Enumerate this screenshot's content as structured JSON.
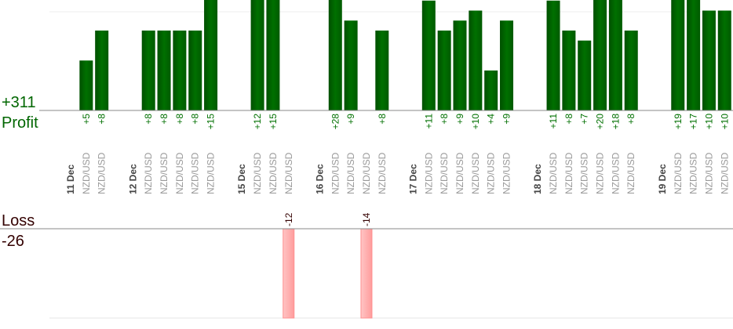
{
  "chart_data": {
    "type": "bar",
    "profit_total_label": "+311",
    "profit_label": "Profit",
    "loss_label": "Loss",
    "loss_total_label": "-26",
    "profit_axis_max": 11.06,
    "profit_gridline": 10,
    "loss_axis_max": 12,
    "colors": {
      "profit": "#006400",
      "profit_text": "#007000",
      "loss": "#ffaaaa",
      "loss_text": "#330000",
      "pair_text": "#999999",
      "date_text": "#444444"
    },
    "days": [
      {
        "date": "11 Dec",
        "trades": [
          {
            "pair": "NZD/USD",
            "value": 5,
            "label": "+5"
          },
          {
            "pair": "NZD/USD",
            "value": 8,
            "label": "+8"
          }
        ]
      },
      {
        "date": "12 Dec",
        "trades": [
          {
            "pair": "NZD/USD",
            "value": 8,
            "label": "+8"
          },
          {
            "pair": "NZD/USD",
            "value": 8,
            "label": "+8"
          },
          {
            "pair": "NZD/USD",
            "value": 8,
            "label": "+8"
          },
          {
            "pair": "NZD/USD",
            "value": 8,
            "label": "+8"
          },
          {
            "pair": "NZD/USD",
            "value": 15,
            "label": "+15"
          }
        ]
      },
      {
        "date": "15 Dec",
        "trades": [
          {
            "pair": "NZD/USD",
            "value": 12,
            "label": "+12"
          },
          {
            "pair": "NZD/USD",
            "value": 15,
            "label": "+15"
          },
          {
            "pair": "NZD/USD",
            "value": -12,
            "label": "-12"
          }
        ]
      },
      {
        "date": "16 Dec",
        "trades": [
          {
            "pair": "NZD/USD",
            "value": 28,
            "label": "+28"
          },
          {
            "pair": "NZD/USD",
            "value": 9,
            "label": "+9"
          },
          {
            "pair": "NZD/USD",
            "value": -14,
            "label": "-14"
          },
          {
            "pair": "NZD/USD",
            "value": 8,
            "label": "+8"
          }
        ]
      },
      {
        "date": "17 Dec",
        "trades": [
          {
            "pair": "NZD/USD",
            "value": 11,
            "label": "+11"
          },
          {
            "pair": "NZD/USD",
            "value": 8,
            "label": "+8"
          },
          {
            "pair": "NZD/USD",
            "value": 9,
            "label": "+9"
          },
          {
            "pair": "NZD/USD",
            "value": 10,
            "label": "+10"
          },
          {
            "pair": "NZD/USD",
            "value": 4,
            "label": "+4"
          },
          {
            "pair": "NZD/USD",
            "value": 9,
            "label": "+9"
          }
        ]
      },
      {
        "date": "18 Dec",
        "trades": [
          {
            "pair": "NZD/USD",
            "value": 11,
            "label": "+11"
          },
          {
            "pair": "NZD/USD",
            "value": 8,
            "label": "+8"
          },
          {
            "pair": "NZD/USD",
            "value": 7,
            "label": "+7"
          },
          {
            "pair": "NZD/USD",
            "value": 20,
            "label": "+20"
          },
          {
            "pair": "NZD/USD",
            "value": 18,
            "label": "+18"
          },
          {
            "pair": "NZD/USD",
            "value": 8,
            "label": "+8"
          }
        ]
      },
      {
        "date": "19 Dec",
        "trades": [
          {
            "pair": "NZD/USD",
            "value": 19,
            "label": "+19"
          },
          {
            "pair": "NZD/USD",
            "value": 17,
            "label": "+17"
          },
          {
            "pair": "NZD/USD",
            "value": 10,
            "label": "+10"
          },
          {
            "pair": "NZD/USD",
            "value": 10,
            "label": "+10"
          }
        ]
      }
    ]
  }
}
